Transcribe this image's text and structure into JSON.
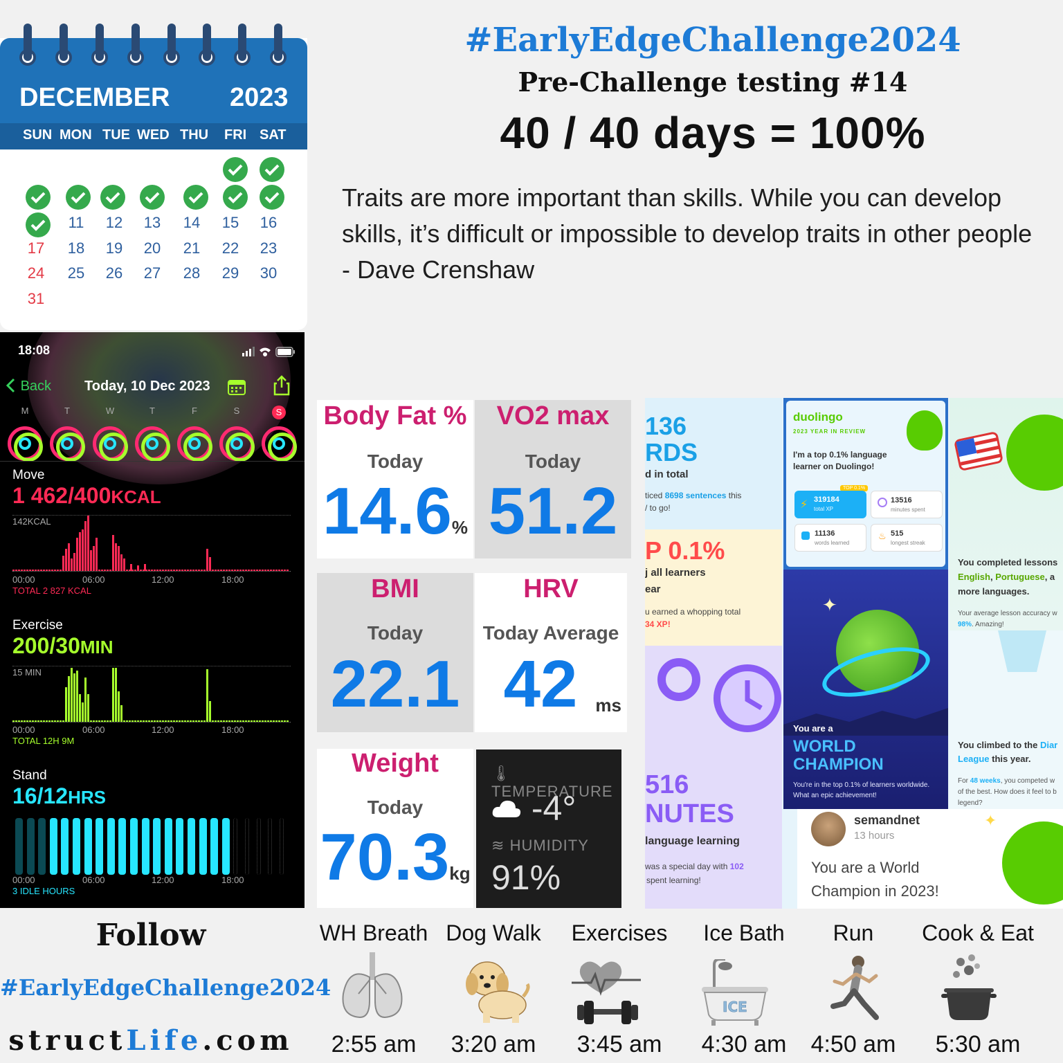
{
  "calendar": {
    "month": "DECEMBER",
    "year": "2023",
    "weekdays": [
      "SUN",
      "MON",
      "TUE",
      "WED",
      "THU",
      "FRI",
      "SAT"
    ],
    "days": [
      "11",
      "12",
      "13",
      "14",
      "15",
      "16",
      "17",
      "18",
      "19",
      "20",
      "21",
      "22",
      "23",
      "24",
      "25",
      "26",
      "27",
      "28",
      "29",
      "30",
      "31"
    ],
    "checked_count": 10
  },
  "header": {
    "hashtag": "#EarlyEdgeChallenge2024",
    "subtitle": "Pre-Challenge testing #14",
    "score": "40 / 40 days = 100%",
    "quote": "Traits are more important than skills. While you can develop skills, it’s difficult or impossible to develop traits in other people - Dave Crenshaw"
  },
  "phone": {
    "time": "18:08",
    "back": "Back",
    "date": "Today, 10 Dec 2023",
    "week_letters": [
      "M",
      "T",
      "W",
      "T",
      "F",
      "S",
      "S"
    ],
    "move": {
      "label": "Move",
      "value": "1 462/400",
      "unit": "KCAL",
      "scale": "142KCAL",
      "total": "TOTAL 2 827 KCAL"
    },
    "exercise": {
      "label": "Exercise",
      "value": "200/30",
      "unit": "MIN",
      "scale": "15 MIN",
      "total": "TOTAL 12H 9M"
    },
    "stand": {
      "label": "Stand",
      "value": "16/12",
      "unit": "HRS",
      "total": "3 IDLE HOURS"
    },
    "axis": [
      "00:00",
      "06:00",
      "12:00",
      "18:00"
    ],
    "colors": {
      "move": "#ff2a55",
      "exercise": "#a6ff2c",
      "stand": "#27e6ff"
    }
  },
  "metrics": {
    "body_fat": {
      "title": "Body Fat %",
      "sub": "Today",
      "value": "14.6",
      "unit": "%"
    },
    "vo2": {
      "title": "VO2 max",
      "sub": "Today",
      "value": "51.2"
    },
    "bmi": {
      "title": "BMI",
      "sub": "Today",
      "value": "22.1"
    },
    "hrv": {
      "title": "HRV",
      "sub": "Today Average",
      "value": "42",
      "unit": "ms"
    },
    "weight": {
      "title": "Weight",
      "sub": "Today",
      "value": "70.3",
      "unit": "kg"
    },
    "weather": {
      "temp_label": "TEMPERATURE",
      "temp": "-4°",
      "hum_label": "HUMIDITY",
      "hum": "91%"
    }
  },
  "duolingo": {
    "words_big": "136",
    "words_label": "RDS",
    "words_sub": "d in total",
    "words_line1a": "ticed ",
    "words_line1b": "8698 sentences",
    "words_line1c": " this",
    "words_line2": "/ to go!",
    "top_big": "P 0.1%",
    "top_sub1": "j all learners",
    "top_sub2": "ear",
    "top_line1": "u earned a whopping total",
    "top_line2": "34 XP!",
    "min_big": "516",
    "min_label": "NUTES",
    "min_sub": "language learning",
    "min_line1a": "was a special day with ",
    "min_line1b": "102",
    "min_line2": "spent learning!",
    "brand": "duolingo",
    "year_review": "2023 YEAR IN REVIEW",
    "claim": "I'm a top 0.1% language learner on Duolingo!",
    "top_tag": "TOP 0.1%",
    "stats": [
      {
        "value": "319184",
        "label": "total XP"
      },
      {
        "value": "13516",
        "label": "minutes spent"
      },
      {
        "value": "11136",
        "label": "words learned"
      },
      {
        "value": "515",
        "label": "longest streak"
      }
    ],
    "you_are": "You are a",
    "champion1": "WORLD",
    "champion2": "CHAMPION",
    "champ_note": "You're in the top 0.1% of learners worldwide. What an epic achievement!",
    "lessons1": "You completed lessons",
    "lessons2a": "English",
    "lessons2b": ", ",
    "lessons2c": "Portuguese",
    "lessons2d": ", a",
    "lessons3": "more languages.",
    "accuracy1": "Your average lesson accuracy w",
    "accuracy2a": "98%",
    "accuracy2b": ". Amazing!",
    "climb1a": "You climbed to the ",
    "climb1b": "Diar",
    "climb2a": "League",
    "climb2b": " this year.",
    "climb3a": "For ",
    "climb3b": "48 weeks",
    "climb3c": ", you competed w",
    "climb4": "of the best. How does it feel to b",
    "climb5": "legend?",
    "user": "semandnet",
    "user_time": "13 hours",
    "post1": "You are a World",
    "post2": "Champion in 2023!"
  },
  "footer": {
    "follow": "Follow",
    "hashtag": "#EarlyEdgeChallenge2024",
    "site_a": "struct",
    "site_b": "Life",
    "site_c": ".com",
    "activities": [
      {
        "name": "WH Breath",
        "time": "2:55 am"
      },
      {
        "name": "Dog Walk",
        "time": "3:20 am"
      },
      {
        "name": "Exercises",
        "time": "3:45 am"
      },
      {
        "name": "Ice Bath",
        "time": "4:30 am"
      },
      {
        "name": "Run",
        "time": "4:50 am"
      },
      {
        "name": "Cook & Eat",
        "time": "5:30 am"
      }
    ],
    "ice_label": "ICE"
  }
}
